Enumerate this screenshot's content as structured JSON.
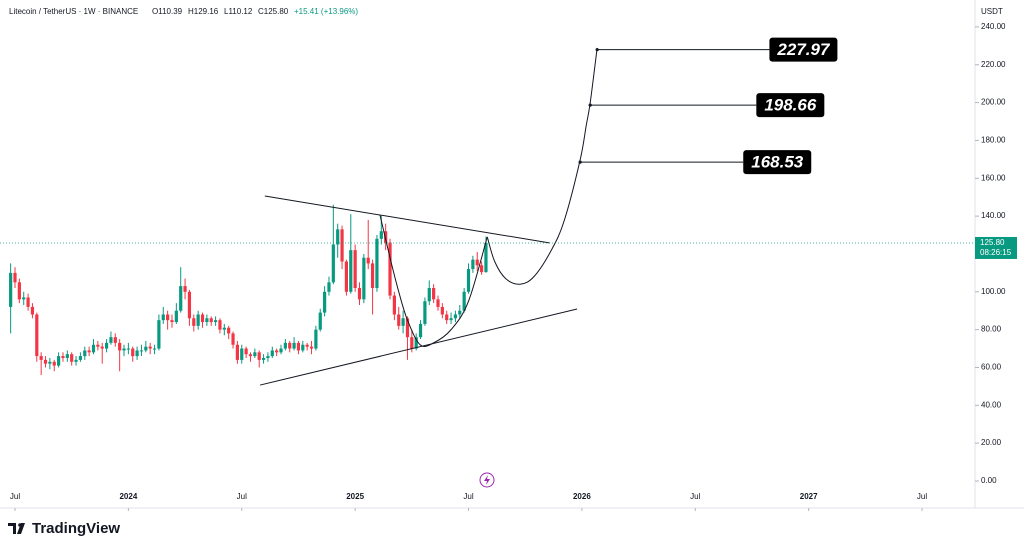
{
  "header": {
    "symbol": "Litecoin / TetherUS · 1W · BINANCE",
    "open": "O110.39",
    "high": "H129.16",
    "low": "L110.12",
    "close": "C125.80",
    "change": "+15.41 (+13.96%)"
  },
  "currency": "USDT",
  "brand": "TradingView",
  "chart_data": {
    "type": "candlestick",
    "up_color": "#089981",
    "down_color": "#f23645",
    "xlim": [
      -3.44,
      219
    ],
    "ylim": [
      -12.7,
      250
    ],
    "xticks": [
      {
        "value": 0,
        "label": "Jul"
      },
      {
        "value": 26,
        "label": "2024"
      },
      {
        "value": 52,
        "label": "Jul"
      },
      {
        "value": 78,
        "label": "2025"
      },
      {
        "value": 104,
        "label": "Jul"
      },
      {
        "value": 130,
        "label": "2026"
      },
      {
        "value": 156,
        "label": "Jul"
      },
      {
        "value": 182,
        "label": "2027"
      },
      {
        "value": 208,
        "label": "Jul"
      }
    ],
    "yticks": [
      {
        "value": 0,
        "label": "0.00"
      },
      {
        "value": 20,
        "label": "20.00"
      },
      {
        "value": 40,
        "label": "40.00"
      },
      {
        "value": 60,
        "label": "60.00"
      },
      {
        "value": 80,
        "label": "80.00"
      },
      {
        "value": 100,
        "label": "100.00"
      },
      {
        "value": 120,
        "label": "120.00"
      },
      {
        "value": 140,
        "label": "140.00"
      },
      {
        "value": 160,
        "label": "160.00"
      },
      {
        "value": 180,
        "label": "180.00"
      },
      {
        "value": 200,
        "label": "200.00"
      },
      {
        "value": 220,
        "label": "220.00"
      },
      {
        "value": 240,
        "label": "240.00"
      }
    ],
    "x": [
      -1,
      0,
      1,
      2,
      3,
      4,
      5,
      6,
      7,
      8,
      9,
      10,
      11,
      12,
      13,
      14,
      15,
      16,
      17,
      18,
      19,
      20,
      21,
      22,
      23,
      24,
      25,
      26,
      27,
      28,
      29,
      30,
      31,
      32,
      33,
      34,
      35,
      36,
      37,
      38,
      39,
      40,
      41,
      42,
      43,
      44,
      45,
      46,
      47,
      48,
      49,
      50,
      51,
      52,
      53,
      54,
      55,
      56,
      57,
      58,
      59,
      60,
      61,
      62,
      63,
      64,
      65,
      66,
      67,
      68,
      69,
      70,
      71,
      72,
      73,
      74,
      75,
      76,
      77,
      78,
      79,
      80,
      81,
      82,
      83,
      84,
      85,
      86,
      87,
      88,
      89,
      90,
      91,
      92,
      93,
      94,
      95,
      96,
      97,
      98,
      99,
      100,
      101,
      102,
      103,
      104,
      105,
      106,
      107,
      108
    ],
    "candles": [
      [
        92,
        115,
        78,
        110
      ],
      [
        110,
        113,
        102,
        105
      ],
      [
        105,
        107,
        94,
        96
      ],
      [
        96,
        100,
        93,
        97
      ],
      [
        97,
        99,
        90,
        92
      ],
      [
        92,
        94,
        86,
        88
      ],
      [
        88,
        89,
        63,
        66
      ],
      [
        66,
        68,
        56,
        64
      ],
      [
        64,
        66,
        60,
        62
      ],
      [
        62,
        65,
        59,
        63
      ],
      [
        63,
        64,
        58,
        61
      ],
      [
        61,
        68,
        60,
        66
      ],
      [
        66,
        68,
        63,
        65
      ],
      [
        65,
        69,
        63,
        67
      ],
      [
        67,
        68,
        61,
        63
      ],
      [
        63,
        66,
        61,
        64
      ],
      [
        64,
        68,
        63,
        66
      ],
      [
        66,
        71,
        64,
        69
      ],
      [
        69,
        71,
        66,
        68
      ],
      [
        68,
        75,
        67,
        72
      ],
      [
        72,
        74,
        69,
        71
      ],
      [
        71,
        73,
        62,
        70
      ],
      [
        70,
        75,
        68,
        73
      ],
      [
        73,
        79,
        72,
        76
      ],
      [
        76,
        78,
        71,
        73
      ],
      [
        73,
        75,
        58,
        69
      ],
      [
        69,
        72,
        66,
        70
      ],
      [
        70,
        73,
        67,
        70
      ],
      [
        70,
        71,
        63,
        66
      ],
      [
        66,
        71,
        64,
        69
      ],
      [
        69,
        72,
        66,
        69
      ],
      [
        69,
        74,
        68,
        71
      ],
      [
        71,
        73,
        67,
        70
      ],
      [
        70,
        72,
        67,
        70
      ],
      [
        70,
        88,
        69,
        85
      ],
      [
        85,
        92,
        83,
        88
      ],
      [
        88,
        90,
        80,
        85
      ],
      [
        85,
        88,
        81,
        84
      ],
      [
        84,
        94,
        83,
        90
      ],
      [
        90,
        113,
        89,
        103
      ],
      [
        103,
        107,
        96,
        100
      ],
      [
        100,
        101,
        82,
        86
      ],
      [
        86,
        88,
        79,
        82
      ],
      [
        82,
        90,
        80,
        88
      ],
      [
        88,
        89,
        81,
        84
      ],
      [
        84,
        88,
        82,
        86
      ],
      [
        86,
        87,
        82,
        84
      ],
      [
        84,
        87,
        82,
        85
      ],
      [
        85,
        86,
        78,
        80
      ],
      [
        80,
        83,
        77,
        81
      ],
      [
        81,
        82,
        75,
        78
      ],
      [
        78,
        79,
        70,
        72
      ],
      [
        72,
        74,
        62,
        64
      ],
      [
        64,
        72,
        62,
        70
      ],
      [
        70,
        71,
        65,
        67
      ],
      [
        67,
        68,
        63,
        66
      ],
      [
        66,
        70,
        65,
        68
      ],
      [
        68,
        69,
        60,
        64
      ],
      [
        64,
        67,
        62,
        65
      ],
      [
        65,
        68,
        63,
        66
      ],
      [
        66,
        71,
        65,
        69
      ],
      [
        69,
        70,
        66,
        68
      ],
      [
        68,
        72,
        67,
        70
      ],
      [
        70,
        75,
        69,
        73
      ],
      [
        73,
        74,
        68,
        70
      ],
      [
        70,
        76,
        69,
        73
      ],
      [
        73,
        74,
        67,
        69
      ],
      [
        69,
        74,
        68,
        72
      ],
      [
        72,
        73,
        69,
        71
      ],
      [
        71,
        74,
        67,
        70
      ],
      [
        70,
        82,
        69,
        80
      ],
      [
        80,
        91,
        79,
        89
      ],
      [
        89,
        103,
        87,
        100
      ],
      [
        100,
        108,
        98,
        105
      ],
      [
        105,
        146,
        104,
        125
      ],
      [
        125,
        136,
        118,
        133
      ],
      [
        133,
        135,
        112,
        116
      ],
      [
        116,
        117,
        98,
        100
      ],
      [
        100,
        141,
        99,
        122
      ],
      [
        122,
        125,
        100,
        102
      ],
      [
        102,
        105,
        93,
        96
      ],
      [
        96,
        120,
        94,
        118
      ],
      [
        118,
        138,
        112,
        115
      ],
      [
        115,
        117,
        88,
        102
      ],
      [
        102,
        130,
        100,
        128
      ],
      [
        128,
        140,
        125,
        132
      ],
      [
        132,
        136,
        122,
        126
      ],
      [
        126,
        128,
        96,
        98
      ],
      [
        98,
        100,
        85,
        88
      ],
      [
        88,
        92,
        80,
        82
      ],
      [
        82,
        90,
        78,
        86
      ],
      [
        86,
        87,
        64,
        76
      ],
      [
        76,
        80,
        68,
        70
      ],
      [
        70,
        78,
        69,
        76
      ],
      [
        76,
        85,
        75,
        83
      ],
      [
        83,
        97,
        82,
        95
      ],
      [
        95,
        106,
        93,
        102
      ],
      [
        102,
        104,
        94,
        96
      ],
      [
        96,
        98,
        90,
        92
      ],
      [
        92,
        94,
        86,
        88
      ],
      [
        88,
        90,
        83,
        85
      ],
      [
        85,
        89,
        83,
        86
      ],
      [
        86,
        90,
        84,
        88
      ],
      [
        88,
        93,
        86,
        90
      ],
      [
        90,
        102,
        89,
        100
      ],
      [
        100,
        115,
        99,
        112
      ],
      [
        112,
        119,
        110,
        117
      ],
      [
        117,
        121,
        111,
        114
      ],
      [
        114,
        116,
        109,
        110.39
      ],
      [
        110.39,
        129.16,
        110.12,
        125.8
      ]
    ],
    "last_price": {
      "value": 125.8,
      "label": "125.80",
      "countdown": "08:26:15"
    },
    "trendlines": [
      {
        "x": [
          57.3,
          122.7
        ],
        "y": [
          150.6,
          125.8
        ]
      },
      {
        "x": [
          56.2,
          128.9
        ],
        "y": [
          50.7,
          90.9
        ]
      }
    ],
    "curves": [
      {
        "x": [
          83.7,
          86,
          88,
          90,
          92.9,
          96,
          100,
          104,
          108.3
        ],
        "y": [
          140.6,
          118,
          100,
          85,
          72,
          73,
          80,
          95,
          129
        ]
      },
      {
        "x": [
          108.3,
          110,
          112.5,
          115.8,
          119,
          123,
          126,
          129.6,
          131,
          131.9,
          133.5
        ],
        "y": [
          129,
          116,
          107,
          104,
          108,
          122,
          138,
          169.7,
          188,
          199.8,
          228.9
        ]
      }
    ],
    "targets": [
      {
        "value": 227.97,
        "x": [
          133.5,
          173
        ]
      },
      {
        "value": 198.66,
        "x": [
          131.9,
          170
        ]
      },
      {
        "value": 168.53,
        "x": [
          129.6,
          167
        ]
      }
    ]
  }
}
